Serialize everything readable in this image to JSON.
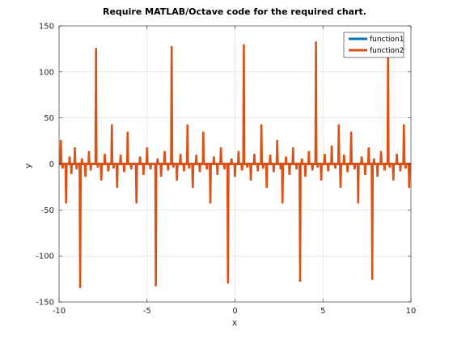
{
  "chart_data": {
    "type": "line",
    "title": "Require MATLAB/Octave code for the required chart.",
    "xlabel": "x",
    "ylabel": "y",
    "xlim": [
      -10,
      10
    ],
    "ylim": [
      -150,
      150
    ],
    "xticks": [
      -10,
      -5,
      0,
      5,
      10
    ],
    "yticks": [
      -150,
      -100,
      -50,
      0,
      50,
      100,
      150
    ],
    "grid": true,
    "legend_position": "top-right",
    "series": [
      {
        "name": "function1",
        "color": "#0072BD",
        "note_values": "nearly flat near 0 across the whole range",
        "x": [
          -10,
          -5,
          0,
          5,
          10
        ],
        "y": [
          0,
          0,
          0,
          0,
          0
        ]
      },
      {
        "name": "function2",
        "color": "#D95319",
        "spikes": [
          [
            -9.9,
            26
          ],
          [
            -9.8,
            -5
          ],
          [
            -9.6,
            -43
          ],
          [
            -9.4,
            8
          ],
          [
            -9.3,
            -11
          ],
          [
            -9.1,
            18
          ],
          [
            -9.0,
            -6
          ],
          [
            -8.8,
            -135
          ],
          [
            -8.7,
            6
          ],
          [
            -8.5,
            -14
          ],
          [
            -8.3,
            14
          ],
          [
            -8.2,
            -7
          ],
          [
            -7.9,
            126
          ],
          [
            -7.8,
            -4
          ],
          [
            -7.6,
            -18
          ],
          [
            -7.4,
            11
          ],
          [
            -7.2,
            -8
          ],
          [
            -7.0,
            43
          ],
          [
            -6.9,
            -5
          ],
          [
            -6.7,
            -26
          ],
          [
            -6.5,
            10
          ],
          [
            -6.3,
            -9
          ],
          [
            -6.1,
            35
          ],
          [
            -5.9,
            -6
          ],
          [
            -5.6,
            -43
          ],
          [
            -5.4,
            8
          ],
          [
            -5.2,
            -12
          ],
          [
            -5.0,
            18
          ],
          [
            -4.8,
            -6
          ],
          [
            -4.5,
            -133
          ],
          [
            -4.4,
            6
          ],
          [
            -4.2,
            -14
          ],
          [
            -4.0,
            14
          ],
          [
            -3.8,
            -7
          ],
          [
            -3.6,
            128
          ],
          [
            -3.5,
            -4
          ],
          [
            -3.3,
            -18
          ],
          [
            -3.1,
            11
          ],
          [
            -2.9,
            -8
          ],
          [
            -2.7,
            43
          ],
          [
            -2.6,
            -5
          ],
          [
            -2.4,
            -26
          ],
          [
            -2.2,
            10
          ],
          [
            -2.0,
            -9
          ],
          [
            -1.8,
            35
          ],
          [
            -1.6,
            -6
          ],
          [
            -1.4,
            -43
          ],
          [
            -1.2,
            8
          ],
          [
            -1.0,
            -12
          ],
          [
            -0.8,
            18
          ],
          [
            -0.6,
            -6
          ],
          [
            -0.4,
            -130
          ],
          [
            -0.2,
            6
          ],
          [
            0.0,
            -14
          ],
          [
            0.2,
            14
          ],
          [
            0.4,
            -7
          ],
          [
            0.5,
            130
          ],
          [
            0.7,
            -4
          ],
          [
            0.9,
            -18
          ],
          [
            1.1,
            11
          ],
          [
            1.3,
            -8
          ],
          [
            1.5,
            43
          ],
          [
            1.6,
            -5
          ],
          [
            1.8,
            -26
          ],
          [
            2.0,
            10
          ],
          [
            2.2,
            -9
          ],
          [
            2.4,
            26
          ],
          [
            2.6,
            -6
          ],
          [
            2.7,
            -43
          ],
          [
            2.9,
            8
          ],
          [
            3.1,
            -12
          ],
          [
            3.3,
            18
          ],
          [
            3.5,
            -6
          ],
          [
            3.7,
            -128
          ],
          [
            3.8,
            6
          ],
          [
            4.0,
            -14
          ],
          [
            4.2,
            14
          ],
          [
            4.4,
            -7
          ],
          [
            4.6,
            133
          ],
          [
            4.7,
            -4
          ],
          [
            4.9,
            -18
          ],
          [
            5.1,
            11
          ],
          [
            5.3,
            -8
          ],
          [
            5.5,
            20
          ],
          [
            5.7,
            -5
          ],
          [
            5.9,
            43
          ],
          [
            6.0,
            -26
          ],
          [
            6.2,
            10
          ],
          [
            6.4,
            -9
          ],
          [
            6.6,
            35
          ],
          [
            6.8,
            -6
          ],
          [
            7.0,
            -43
          ],
          [
            7.2,
            8
          ],
          [
            7.4,
            -12
          ],
          [
            7.6,
            18
          ],
          [
            7.8,
            -126
          ],
          [
            7.9,
            6
          ],
          [
            8.1,
            -14
          ],
          [
            8.3,
            14
          ],
          [
            8.5,
            -7
          ],
          [
            8.7,
            122
          ],
          [
            8.8,
            -4
          ],
          [
            9.0,
            -18
          ],
          [
            9.2,
            11
          ],
          [
            9.4,
            -8
          ],
          [
            9.6,
            43
          ],
          [
            9.7,
            -5
          ],
          [
            9.9,
            -26
          ]
        ]
      }
    ]
  }
}
